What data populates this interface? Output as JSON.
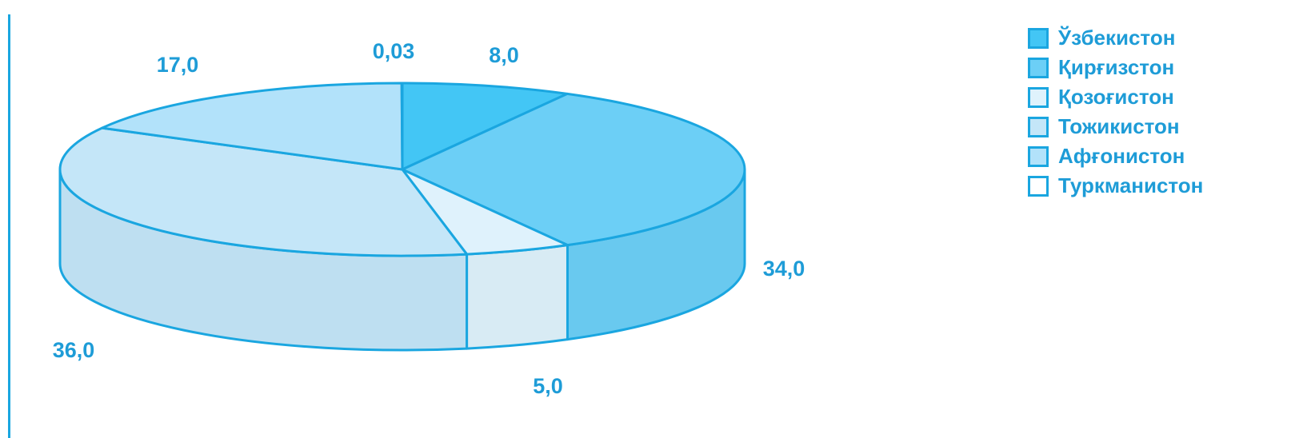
{
  "chart_data": {
    "type": "pie",
    "style": "3d",
    "title": "",
    "legend_position": "right",
    "stroke_color": "#1aa6e0",
    "series": [
      {
        "name": "Ўзбекистон",
        "value": 8.0,
        "label": "8,0",
        "color": "#43c6f5"
      },
      {
        "name": "Қирғизстон",
        "value": 34.0,
        "label": "34,0",
        "color": "#6ccff6"
      },
      {
        "name": "Қозоғистон",
        "value": 5.0,
        "label": "5,0",
        "color": "#dff2fc"
      },
      {
        "name": "Тожикистон",
        "value": 36.0,
        "label": "36,0",
        "color": "#c4e6f8"
      },
      {
        "name": "Афғонистон",
        "value": 17.0,
        "label": "17,0",
        "color": "#b2e2fa"
      },
      {
        "name": "Туркманистон",
        "value": 0.03,
        "label": "0,03",
        "color": "#ffffff"
      }
    ]
  }
}
